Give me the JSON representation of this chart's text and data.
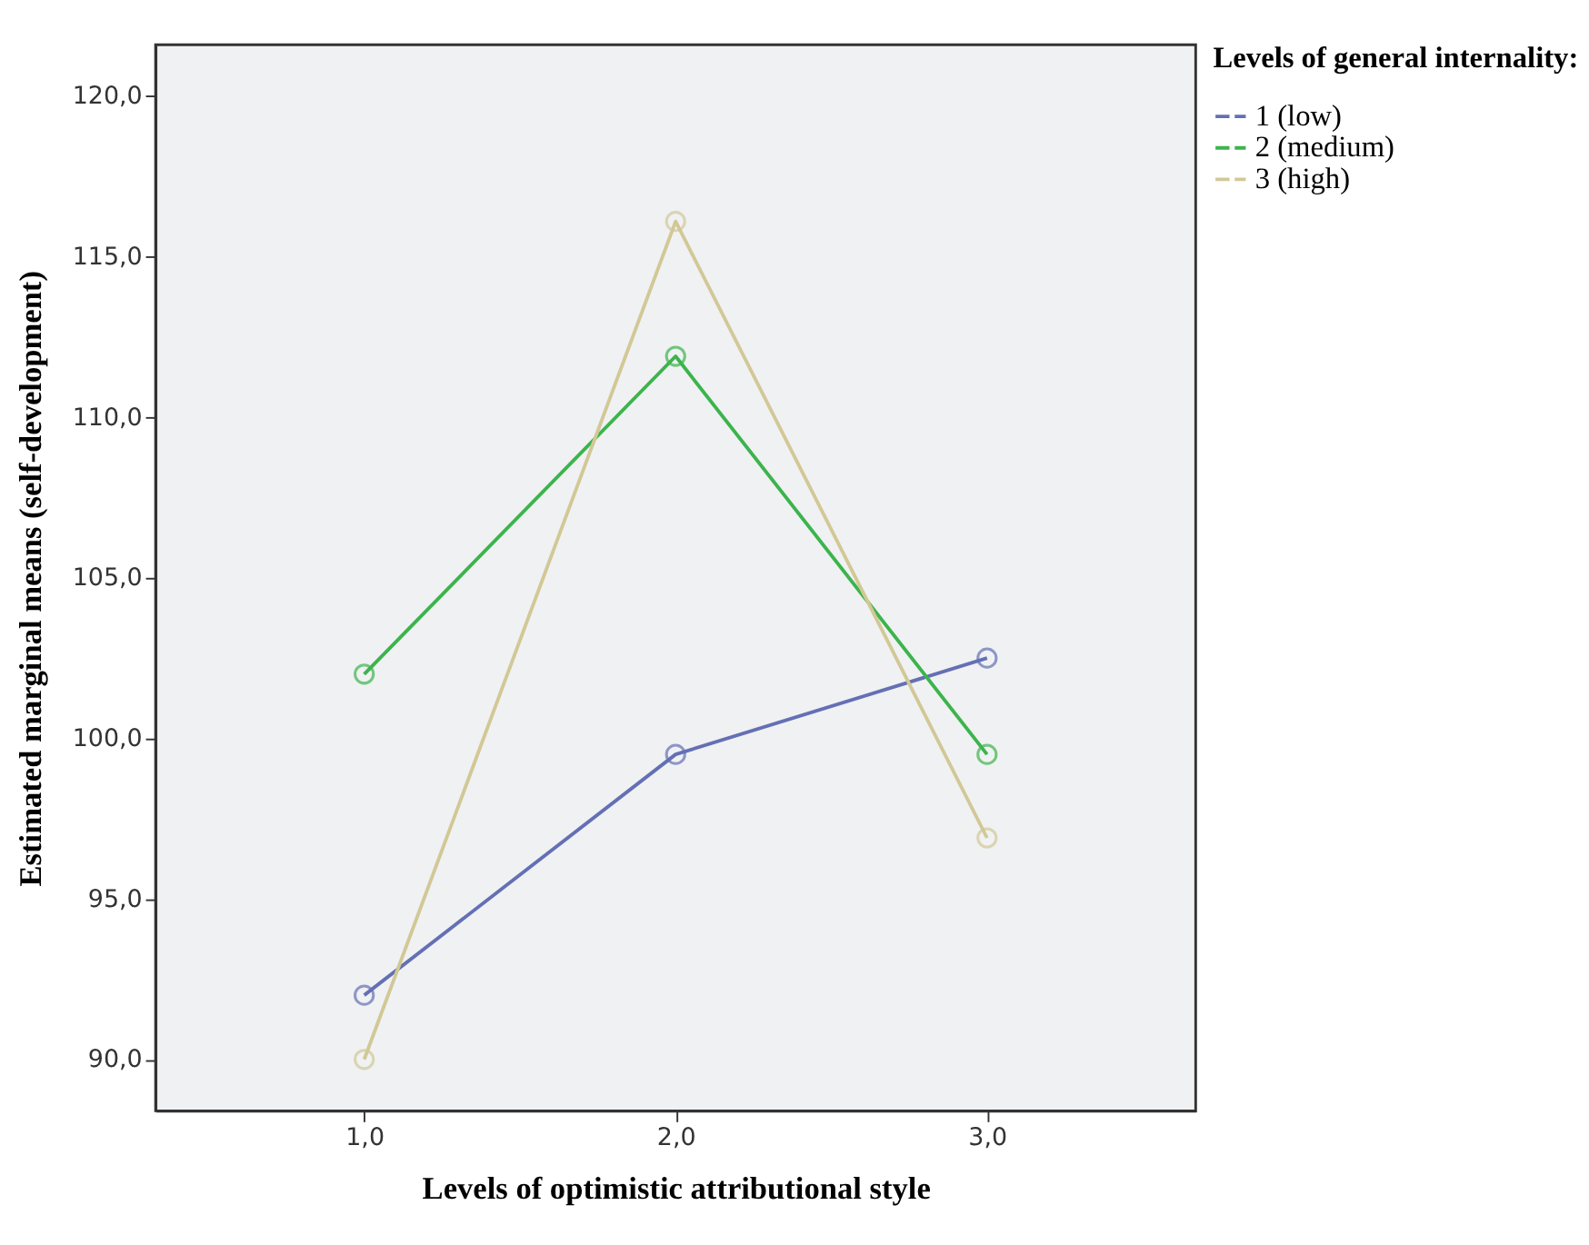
{
  "chart_data": {
    "type": "line",
    "xlabel": "Levels of optimistic attributional style",
    "ylabel": "Estimated marginal means (self-development)",
    "legend_title": "Levels of general internality:",
    "x": [
      1,
      2,
      3
    ],
    "series": [
      {
        "name": "1 (low)",
        "color": "#6470b4",
        "values": [
          92.0,
          99.5,
          102.5
        ]
      },
      {
        "name": "2 (medium)",
        "color": "#3cb44c",
        "values": [
          102.0,
          111.9,
          99.5
        ]
      },
      {
        "name": "3 (high)",
        "color": "#d2c896",
        "values": [
          90.0,
          116.1,
          96.9
        ]
      }
    ],
    "xlim": [
      0.33,
      3.67
    ],
    "xticks": [
      {
        "value": 1,
        "label": "1,0"
      },
      {
        "value": 2,
        "label": "2,0"
      },
      {
        "value": 3,
        "label": "3,0"
      }
    ],
    "ylim": [
      88.4,
      121.6
    ],
    "yticks": [
      {
        "value": 90,
        "label": "90,0"
      },
      {
        "value": 95,
        "label": "95,0"
      },
      {
        "value": 100,
        "label": "100,0"
      },
      {
        "value": 105,
        "label": "105,0"
      },
      {
        "value": 110,
        "label": "110,0"
      },
      {
        "value": 115,
        "label": "115,0"
      },
      {
        "value": 120,
        "label": "120,0"
      }
    ],
    "marker": "circle",
    "line_style": "solid",
    "grid": false,
    "legend": "top right"
  }
}
